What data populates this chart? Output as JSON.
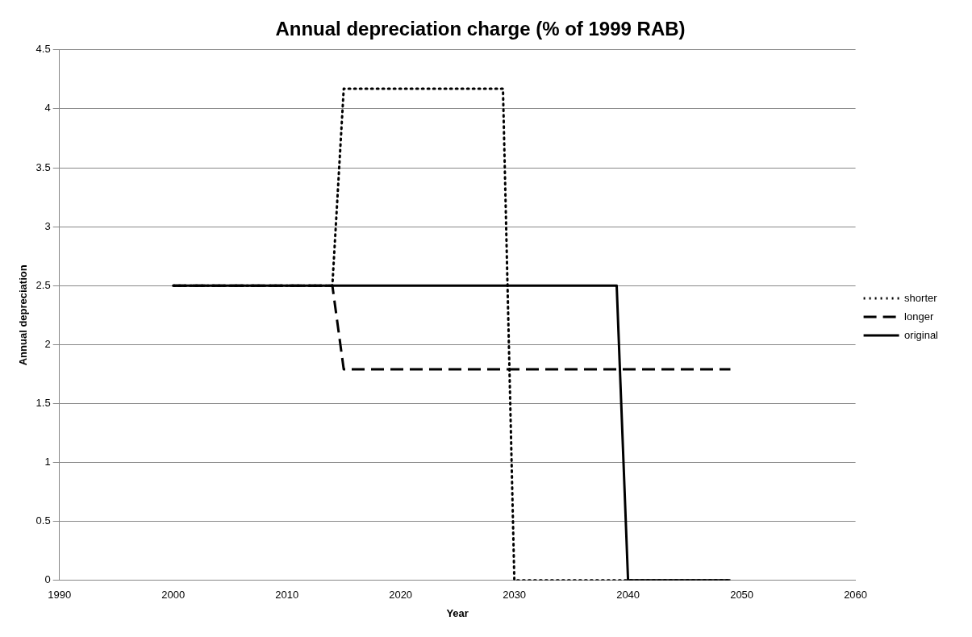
{
  "chart_data": {
    "type": "line",
    "title": "Annual depreciation charge (% of 1999 RAB)",
    "xlabel": "Year",
    "ylabel": "Annual depreciation",
    "series": [
      {
        "name": "shorter",
        "color": "#000000",
        "line_style": "dotted",
        "x": [
          2000,
          2014,
          2015,
          2029,
          2030,
          2049
        ],
        "values": [
          2.5,
          2.5,
          4.17,
          4.17,
          0,
          0
        ]
      },
      {
        "name": "longer",
        "color": "#000000",
        "line_style": "dashed",
        "x": [
          2000,
          2014,
          2015,
          2049
        ],
        "values": [
          2.5,
          2.5,
          1.79,
          1.79
        ]
      },
      {
        "name": "original",
        "color": "#000000",
        "line_style": "solid",
        "x": [
          2000,
          2039,
          2040,
          2049
        ],
        "values": [
          2.5,
          2.5,
          0,
          0
        ]
      }
    ],
    "xlim": [
      1990,
      2060
    ],
    "xticks": [
      1990,
      2000,
      2010,
      2020,
      2030,
      2040,
      2050,
      2060
    ],
    "ylim": [
      0,
      4.5
    ],
    "yticks": [
      0,
      0.5,
      1,
      1.5,
      2,
      2.5,
      3,
      3.5,
      4,
      4.5
    ],
    "grid": "y",
    "legend": "right",
    "marker": "none"
  }
}
